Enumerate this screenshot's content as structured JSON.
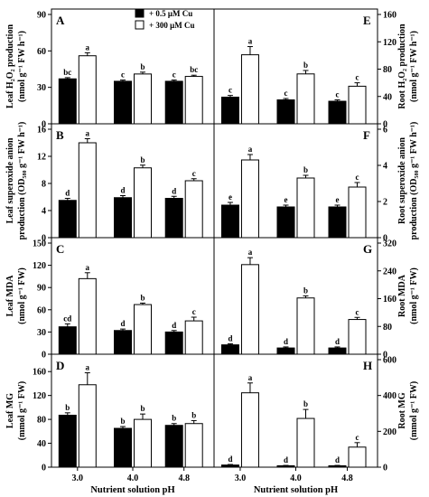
{
  "legend": [
    {
      "label": "+ 0.5 μM Cu",
      "color": "#000000"
    },
    {
      "label": "+ 300 μM Cu",
      "color": "#ffffff"
    }
  ],
  "x_categories": [
    "3.0",
    "4.0",
    "4.8"
  ],
  "x_axis_label": "Nutrient solution pH",
  "chart_data": [
    {
      "type": "bar",
      "panel": "A",
      "side": "left",
      "ylabel_lines": [
        "Leaf H₂O₂ production",
        "(nmol g⁻¹ FW h⁻¹)"
      ],
      "ylim": [
        0,
        90
      ],
      "yticks": [
        0,
        30,
        60,
        90
      ],
      "categories": [
        "3.0",
        "4.0",
        "4.8"
      ],
      "series": [
        {
          "name": "+ 0.5 μM Cu",
          "values": [
            37,
            35,
            35
          ],
          "errors": [
            1.0,
            1.0,
            1.0
          ],
          "letters": [
            "bc",
            "c",
            "c"
          ]
        },
        {
          "name": "+ 300 μM Cu",
          "values": [
            56,
            41,
            39
          ],
          "errors": [
            2.5,
            1.5,
            1.0
          ],
          "letters": [
            "a",
            "b",
            "bc"
          ]
        }
      ]
    },
    {
      "type": "bar",
      "panel": "E",
      "side": "right",
      "ylabel_lines": [
        "Root H₂O₂ production",
        "(nmol g⁻¹ FW h⁻¹)"
      ],
      "ylim": [
        0,
        160
      ],
      "yticks": [
        0,
        40,
        80,
        120,
        160
      ],
      "categories": [
        "3.0",
        "4.0",
        "4.8"
      ],
      "series": [
        {
          "name": "+ 0.5 μM Cu",
          "values": [
            39,
            35,
            33
          ],
          "errors": [
            2.5,
            2.0,
            2.0
          ],
          "letters": [
            "c",
            "c",
            "c"
          ]
        },
        {
          "name": "+ 300 μM Cu",
          "values": [
            101,
            73,
            55
          ],
          "errors": [
            12,
            5,
            5
          ],
          "letters": [
            "a",
            "b",
            "c"
          ]
        }
      ]
    },
    {
      "type": "bar",
      "panel": "B",
      "side": "left",
      "ylabel_lines": [
        "Leaf superoxide anion",
        "production (OD₅₈₀ g⁻¹ FW h⁻¹)"
      ],
      "ylim": [
        0,
        16
      ],
      "yticks": [
        0,
        4,
        8,
        12,
        16
      ],
      "categories": [
        "3.0",
        "4.0",
        "4.8"
      ],
      "series": [
        {
          "name": "+ 0.5 μM Cu",
          "values": [
            5.5,
            5.9,
            5.8
          ],
          "errors": [
            0.3,
            0.3,
            0.3
          ],
          "letters": [
            "d",
            "d",
            "d"
          ]
        },
        {
          "name": "+ 300 μM Cu",
          "values": [
            14.0,
            10.3,
            8.4
          ],
          "errors": [
            0.6,
            0.4,
            0.3
          ],
          "letters": [
            "a",
            "b",
            "c"
          ]
        }
      ]
    },
    {
      "type": "bar",
      "panel": "F",
      "side": "right",
      "ylabel_lines": [
        "Root superoxide anion",
        "production (OD₅₈₀ g⁻¹ FW h⁻¹)"
      ],
      "ylim": [
        0,
        6
      ],
      "yticks": [
        0,
        2,
        4,
        6
      ],
      "categories": [
        "3.0",
        "4.0",
        "4.8"
      ],
      "series": [
        {
          "name": "+ 0.5 μM Cu",
          "values": [
            1.8,
            1.7,
            1.7
          ],
          "errors": [
            0.15,
            0.1,
            0.1
          ],
          "letters": [
            "e",
            "e",
            "e"
          ]
        },
        {
          "name": "+ 300 μM Cu",
          "values": [
            4.3,
            3.3,
            2.8
          ],
          "errors": [
            0.3,
            0.15,
            0.25
          ],
          "letters": [
            "a",
            "b",
            "c"
          ]
        }
      ]
    },
    {
      "type": "bar",
      "panel": "C",
      "side": "left",
      "ylabel_lines": [
        "Leaf MDA",
        "(nmol g⁻¹ FW)"
      ],
      "ylim": [
        0,
        150
      ],
      "yticks": [
        0,
        30,
        60,
        90,
        120,
        150
      ],
      "categories": [
        "3.0",
        "4.0",
        "4.8"
      ],
      "series": [
        {
          "name": "+ 0.5 μM Cu",
          "values": [
            37,
            32,
            30
          ],
          "errors": [
            4,
            2,
            2
          ],
          "letters": [
            "cd",
            "d",
            "d"
          ]
        },
        {
          "name": "+ 300 μM Cu",
          "values": [
            102,
            67,
            45
          ],
          "errors": [
            8,
            2,
            5
          ],
          "letters": [
            "a",
            "b",
            "c"
          ]
        }
      ]
    },
    {
      "type": "bar",
      "panel": "G",
      "side": "right",
      "ylabel_lines": [
        "Root MDA",
        "(nmol g⁻¹ FW)"
      ],
      "ylim": [
        0,
        320
      ],
      "yticks": [
        0,
        80,
        160,
        240,
        320
      ],
      "categories": [
        "3.0",
        "4.0",
        "4.8"
      ],
      "series": [
        {
          "name": "+ 0.5 μM Cu",
          "values": [
            27,
            18,
            18
          ],
          "errors": [
            3,
            3,
            3
          ],
          "letters": [
            "d",
            "d",
            "d"
          ]
        },
        {
          "name": "+ 300 μM Cu",
          "values": [
            258,
            162,
            100
          ],
          "errors": [
            20,
            6,
            6
          ],
          "letters": [
            "a",
            "b",
            "c"
          ]
        }
      ]
    },
    {
      "type": "bar",
      "panel": "D",
      "side": "left",
      "ylabel_lines": [
        "Leaf MG",
        "(mmol g⁻¹ FW)"
      ],
      "ylim": [
        0,
        180
      ],
      "yticks": [
        0,
        40,
        80,
        120,
        160
      ],
      "categories": [
        "3.0",
        "4.0",
        "4.8"
      ],
      "series": [
        {
          "name": "+ 0.5 μM Cu",
          "values": [
            87,
            65,
            70
          ],
          "errors": [
            4,
            3,
            3
          ],
          "letters": [
            "b",
            "b",
            "b"
          ]
        },
        {
          "name": "+ 300 μM Cu",
          "values": [
            138,
            80,
            73
          ],
          "errors": [
            20,
            9,
            5
          ],
          "letters": [
            "a",
            "b",
            "b"
          ]
        }
      ]
    },
    {
      "type": "bar",
      "panel": "H",
      "side": "right",
      "ylabel_lines": [
        "Root MG",
        "(mmol g⁻¹ FW)"
      ],
      "ylim": [
        0,
        600
      ],
      "yticks": [
        0,
        200,
        400,
        600
      ],
      "categories": [
        "3.0",
        "4.0",
        "4.8"
      ],
      "series": [
        {
          "name": "+ 0.5 μM Cu",
          "values": [
            12,
            8,
            8
          ],
          "errors": [
            3,
            2,
            2
          ],
          "letters": [
            "d",
            "d",
            "d"
          ]
        },
        {
          "name": "+ 300 μM Cu",
          "values": [
            415,
            272,
            112
          ],
          "errors": [
            55,
            50,
            25
          ],
          "letters": [
            "a",
            "b",
            "c"
          ]
        }
      ]
    }
  ]
}
